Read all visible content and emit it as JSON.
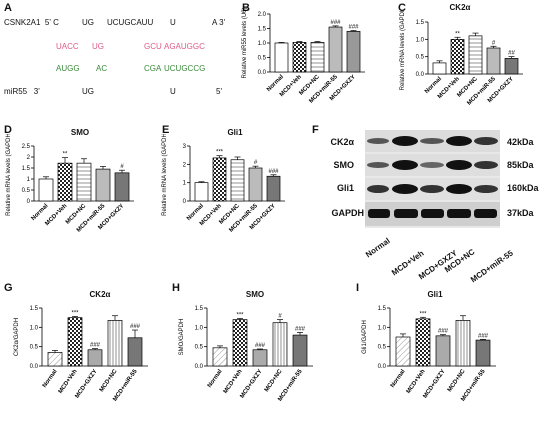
{
  "panelA": {
    "letter": "A",
    "row1_left": "CSNK2A1  5' C",
    "row1_items": [
      "UG",
      "UCUGCAUU",
      "U",
      "A 3'"
    ],
    "row2_items": [
      "UACC",
      "UG",
      "GCU",
      "AGAUGGC"
    ],
    "row3_items": [
      "AUGG",
      "AC",
      "CGA",
      "UCUGCCG"
    ],
    "row4_left": "miR55   3'",
    "row4_items": [
      "UG",
      "U",
      "5'"
    ],
    "pink_color": "#e05a8a",
    "green_color": "#3a8a3a"
  },
  "panelB": {
    "letter": "B",
    "chart_data": {
      "type": "bar",
      "ylabel": "Relative miR55 levels (U6)",
      "ylim": [
        0,
        2.0
      ],
      "yticks": [
        0.0,
        0.5,
        1.0,
        1.5,
        2.0
      ],
      "categories": [
        "Normal",
        "MCD+Veh",
        "MCD+NC",
        "MCD+miR-55",
        "MCD+GXZY"
      ],
      "values": [
        1.0,
        1.02,
        1.02,
        1.55,
        1.4
      ],
      "errors": [
        0.02,
        0.03,
        0.03,
        0.04,
        0.03
      ],
      "significance": [
        "",
        "",
        "",
        "###",
        "###"
      ]
    }
  },
  "panelC": {
    "letter": "C",
    "chart_data": {
      "type": "bar",
      "title": "CK2α",
      "ylabel": "Relative mRNA levels (GAPDH)",
      "ylim": [
        0,
        1.5
      ],
      "yticks": [
        0.0,
        0.5,
        1.0,
        1.5
      ],
      "categories": [
        "Normal",
        "MCD+Veh",
        "MCD+NC",
        "MCD+miR-55",
        "MCD+GXZY"
      ],
      "values": [
        0.32,
        1.0,
        1.1,
        0.75,
        0.45
      ],
      "errors": [
        0.06,
        0.06,
        0.08,
        0.05,
        0.05
      ],
      "significance": [
        "",
        "**",
        "",
        "#",
        "##"
      ]
    }
  },
  "panelD": {
    "letter": "D",
    "chart_data": {
      "type": "bar",
      "title": "SMO",
      "ylabel": "Relative mRNA levels (GAPDH)",
      "ylim": [
        0,
        2.5
      ],
      "yticks": [
        0.0,
        0.5,
        1.0,
        1.5,
        2.0,
        2.5
      ],
      "categories": [
        "Normal",
        "MCD+Veh",
        "MCD+NC",
        "MCD+miR-55",
        "MCD+GXZY"
      ],
      "values": [
        1.0,
        1.72,
        1.72,
        1.45,
        1.28
      ],
      "errors": [
        0.1,
        0.25,
        0.2,
        0.12,
        0.12
      ],
      "significance": [
        "",
        "**",
        "",
        "",
        "#"
      ]
    }
  },
  "panelE": {
    "letter": "E",
    "chart_data": {
      "type": "bar",
      "title": "Gli1",
      "ylabel": "Relative mRNA levels (GAPDH)",
      "ylim": [
        0,
        3
      ],
      "yticks": [
        0,
        1,
        2,
        3
      ],
      "categories": [
        "Normal",
        "MCD+Veh",
        "MCD+NC",
        "MCD+miR-55",
        "MCD+GXZY"
      ],
      "values": [
        1.0,
        2.35,
        2.25,
        1.8,
        1.35
      ],
      "errors": [
        0.05,
        0.12,
        0.15,
        0.1,
        0.08
      ],
      "significance": [
        "",
        "***",
        "",
        "#",
        "###"
      ]
    }
  },
  "panelF": {
    "letter": "F",
    "rows": [
      {
        "name": "CK2α",
        "size": "42kDa"
      },
      {
        "name": "SMO",
        "size": "85kDa"
      },
      {
        "name": "Gli1",
        "size": "160kDa"
      },
      {
        "name": "GAPDH",
        "size": "37kDa"
      }
    ],
    "lanes": [
      "Normal",
      "MCD+Veh",
      "MCD+GXZY",
      "MCD+NC",
      "MCD+miR-55"
    ]
  },
  "panelG": {
    "letter": "G",
    "chart_data": {
      "type": "bar",
      "title": "CK2α",
      "ylabel": "CK2α/GAPDH",
      "ylim": [
        0,
        1.5
      ],
      "yticks": [
        0.0,
        0.5,
        1.0,
        1.5
      ],
      "categories": [
        "Normal",
        "MCD+Veh",
        "MCD+GXZY",
        "MCD+NC",
        "MCD+miR-55"
      ],
      "values": [
        0.35,
        1.25,
        0.42,
        1.18,
        0.73
      ],
      "errors": [
        0.05,
        0.03,
        0.03,
        0.12,
        0.2
      ],
      "significance": [
        "",
        "***",
        "###",
        "",
        "###"
      ]
    }
  },
  "panelH": {
    "letter": "H",
    "chart_data": {
      "type": "bar",
      "title": "SMO",
      "ylabel": "SMO/GAPDH",
      "ylim": [
        0,
        1.5
      ],
      "yticks": [
        0.0,
        0.5,
        1.0,
        1.5
      ],
      "categories": [
        "Normal",
        "MCD+Veh",
        "MCD+GXZY",
        "MCD+NC",
        "MCD+miR-55"
      ],
      "values": [
        0.47,
        1.2,
        0.42,
        1.12,
        0.8
      ],
      "errors": [
        0.05,
        0.03,
        0.02,
        0.08,
        0.07
      ],
      "significance": [
        "",
        "***",
        "###",
        "#",
        "###"
      ]
    }
  },
  "panelI": {
    "letter": "I",
    "chart_data": {
      "type": "bar",
      "title": "Gli1",
      "ylabel": "Gli1/GAPDH",
      "ylim": [
        0,
        1.5
      ],
      "yticks": [
        0.0,
        0.5,
        1.0,
        1.5
      ],
      "categories": [
        "Normal",
        "MCD+Veh",
        "MCD+GXZY",
        "MCD+NC",
        "MCD+miR-55"
      ],
      "values": [
        0.75,
        1.22,
        0.78,
        1.18,
        0.67
      ],
      "errors": [
        0.08,
        0.04,
        0.03,
        0.12,
        0.02
      ],
      "significance": [
        "",
        "***",
        "###",
        "",
        "###"
      ]
    }
  }
}
